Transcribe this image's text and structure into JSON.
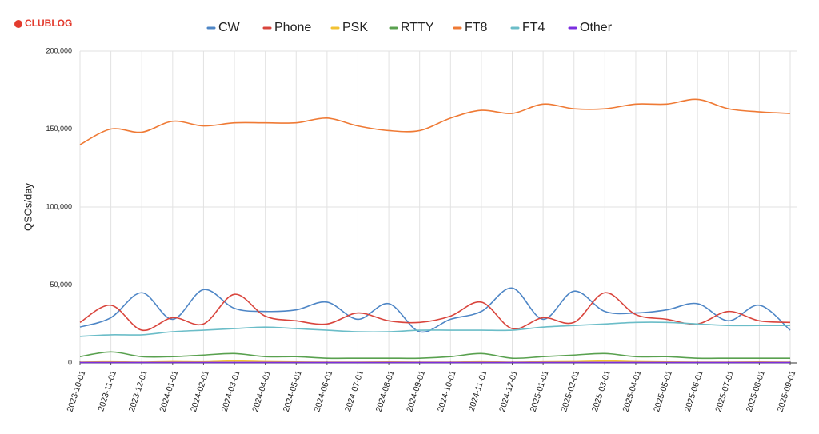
{
  "logo": "CLUBLOG",
  "chart_data": {
    "type": "line",
    "y_label": "QSOs/day",
    "categories": [
      "2023-10-01",
      "2023-11-01",
      "2023-12-01",
      "2024-01-01",
      "2024-02-01",
      "2024-03-01",
      "2024-04-01",
      "2024-05-01",
      "2024-06-01",
      "2024-07-01",
      "2024-08-01",
      "2024-09-01",
      "2024-10-01",
      "2024-11-01",
      "2024-12-01",
      "2025-01-01",
      "2025-02-01",
      "2025-03-01",
      "2025-04-01",
      "2025-05-01",
      "2025-06-01",
      "2025-07-01",
      "2025-08-01",
      "2025-09-01"
    ],
    "ylim": [
      0,
      200000
    ],
    "yticks": [
      0,
      {
        "value": 50000,
        "label": "50,000"
      },
      {
        "value": 100000,
        "label": "100,000"
      },
      {
        "value": 150000,
        "label": "150,000"
      },
      {
        "value": 200000,
        "label": "200,000"
      }
    ],
    "grid": true,
    "legend": "top",
    "series": [
      {
        "name": "CW",
        "color": "#4e86c6",
        "values": [
          23000,
          29000,
          45000,
          28000,
          47000,
          35000,
          33000,
          34000,
          39000,
          28000,
          38000,
          20000,
          28000,
          33000,
          48000,
          28000,
          46000,
          33000,
          32000,
          34000,
          38000,
          27000,
          37000,
          21000
        ]
      },
      {
        "name": "Phone",
        "color": "#d9453d",
        "values": [
          26000,
          37000,
          21000,
          29000,
          25000,
          44000,
          30000,
          27000,
          25000,
          32000,
          27000,
          26000,
          30000,
          39000,
          22000,
          29000,
          26000,
          45000,
          31000,
          28000,
          25000,
          33000,
          27000,
          26000
        ]
      },
      {
        "name": "PSK",
        "color": "#f2c232",
        "values": [
          500,
          700,
          500,
          800,
          700,
          1200,
          800,
          600,
          500,
          500,
          600,
          500,
          500,
          700,
          500,
          700,
          800,
          1200,
          800,
          600,
          500,
          500,
          600,
          500
        ]
      },
      {
        "name": "RTTY",
        "color": "#59a14f",
        "values": [
          4000,
          7000,
          4000,
          4000,
          5000,
          6000,
          4000,
          4000,
          3000,
          3000,
          3000,
          3000,
          4000,
          6000,
          3000,
          4000,
          5000,
          6000,
          4000,
          4000,
          3000,
          3000,
          3000,
          3000
        ]
      },
      {
        "name": "FT8",
        "color": "#ef7a35",
        "values": [
          140000,
          150000,
          148000,
          155000,
          152000,
          154000,
          154000,
          154000,
          157000,
          152000,
          149000,
          149000,
          157000,
          162000,
          160000,
          166000,
          163000,
          163000,
          166000,
          166000,
          169000,
          163000,
          161000,
          160000
        ]
      },
      {
        "name": "FT4",
        "color": "#6bbdc8",
        "values": [
          17000,
          18000,
          18000,
          20000,
          21000,
          22000,
          23000,
          22000,
          21000,
          20000,
          20000,
          21000,
          21000,
          21000,
          21000,
          23000,
          24000,
          25000,
          26000,
          26000,
          25000,
          24000,
          24000,
          24000
        ]
      },
      {
        "name": "Other",
        "color": "#7b2ee0",
        "values": [
          300,
          300,
          300,
          300,
          300,
          300,
          300,
          300,
          300,
          300,
          300,
          300,
          300,
          300,
          300,
          300,
          300,
          300,
          300,
          300,
          300,
          300,
          300,
          300
        ]
      }
    ]
  }
}
